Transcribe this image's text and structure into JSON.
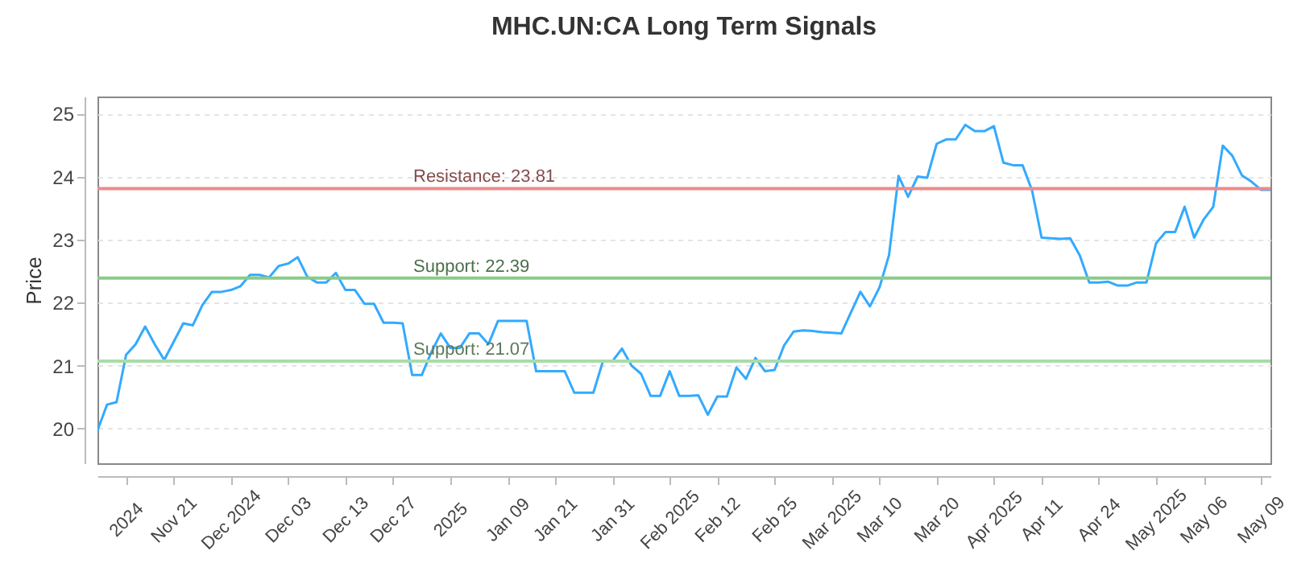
{
  "chart_data": {
    "type": "line",
    "title": "MHC.UN:CA Long Term Signals",
    "ylabel": "Price",
    "categories": [
      null,
      null,
      null,
      "2024",
      null,
      null,
      null,
      null,
      "Nov 21",
      null,
      null,
      null,
      null,
      null,
      "Dec 2024",
      null,
      null,
      null,
      null,
      null,
      "Dec 03",
      null,
      null,
      null,
      null,
      null,
      "Dec 13",
      null,
      null,
      null,
      null,
      "Dec 27",
      null,
      null,
      null,
      null,
      null,
      "2025",
      null,
      null,
      null,
      null,
      null,
      "Jan 09",
      null,
      null,
      null,
      null,
      "Jan 21",
      null,
      null,
      null,
      null,
      null,
      "Jan 31",
      null,
      null,
      null,
      null,
      null,
      "Feb 2025",
      null,
      null,
      null,
      null,
      "Feb 12",
      null,
      null,
      null,
      null,
      null,
      "Feb 25",
      null,
      null,
      null,
      null,
      null,
      "Mar 2025",
      null,
      null,
      null,
      null,
      "Mar 10",
      null,
      null,
      null,
      null,
      null,
      "Mar 20",
      null,
      null,
      null,
      null,
      null,
      "Apr 2025",
      null,
      null,
      null,
      null,
      "Apr 11",
      null,
      null,
      null,
      null,
      null,
      "Apr 24",
      null,
      null,
      null,
      null,
      null,
      "May 2025",
      null,
      null,
      null,
      null,
      "May 06",
      null,
      null,
      null,
      null,
      null,
      "May 09",
      null
    ],
    "series": [
      {
        "color": "#33aaff",
        "values": [
          19.97,
          20.38,
          20.42,
          21.17,
          21.34,
          21.62,
          21.34,
          21.09,
          21.38,
          21.67,
          21.64,
          21.96,
          22.17,
          22.17,
          22.2,
          22.26,
          22.44,
          22.44,
          22.4,
          22.58,
          22.62,
          22.72,
          22.41,
          22.32,
          22.32,
          22.47,
          22.2,
          22.2,
          21.98,
          21.98,
          21.68,
          21.68,
          21.67,
          20.85,
          20.85,
          21.21,
          21.51,
          21.28,
          21.28,
          21.51,
          21.51,
          21.34,
          21.71,
          21.71,
          21.71,
          21.71,
          20.91,
          20.91,
          20.91,
          20.91,
          20.57,
          20.57,
          20.57,
          21.07,
          21.07,
          21.27,
          21.0,
          20.87,
          20.52,
          20.52,
          20.91,
          20.52,
          20.52,
          20.53,
          20.22,
          20.51,
          20.51,
          20.97,
          20.79,
          21.12,
          20.91,
          20.93,
          21.32,
          21.54,
          21.56,
          21.55,
          21.53,
          21.52,
          21.51,
          21.84,
          22.17,
          21.94,
          22.24,
          22.75,
          24.01,
          23.68,
          24.0,
          23.98,
          24.52,
          24.59,
          24.59,
          24.82,
          24.72,
          24.72,
          24.8,
          24.22,
          24.18,
          24.18,
          23.78,
          23.03,
          23.02,
          23.01,
          23.02,
          22.75,
          22.32,
          22.32,
          22.33,
          22.27,
          22.27,
          22.32,
          22.32,
          22.94,
          23.12,
          23.12,
          23.52,
          23.03,
          23.32,
          23.52,
          24.49,
          24.33,
          24.02,
          23.92,
          23.79,
          23.79
        ]
      }
    ],
    "ylim": [
      19.45,
      25.27
    ],
    "yticks": [
      20,
      21,
      22,
      23,
      24,
      25
    ],
    "grid": "y",
    "marker": "none",
    "line_style": "solid",
    "ref_lines": [
      {
        "axis": "y",
        "value": 23.81,
        "label": "Resistance: 23.81",
        "color": "#f08a8a"
      },
      {
        "axis": "y",
        "value": 22.39,
        "label": "Support: 22.39",
        "color": "#88cc88"
      },
      {
        "axis": "y",
        "value": 21.07,
        "label": "Support: 21.07",
        "color": "#a8dca8"
      }
    ]
  }
}
